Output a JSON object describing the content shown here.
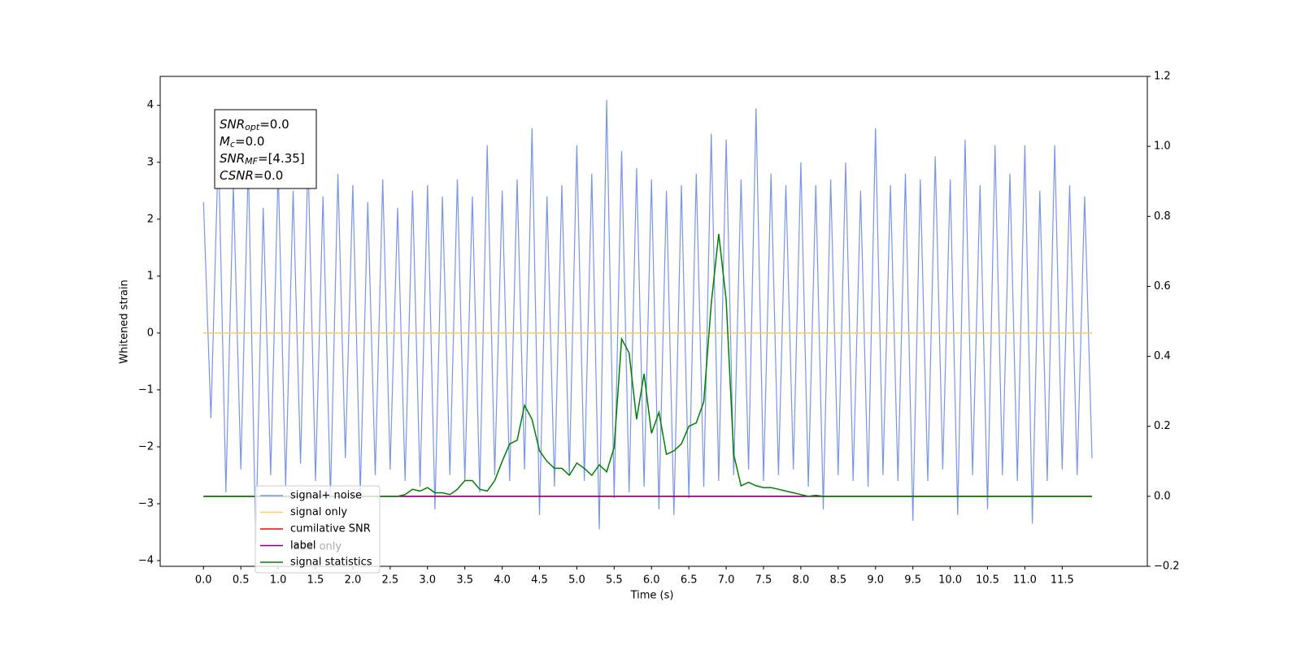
{
  "chart_data": {
    "type": "line",
    "xlabel": "Time (s)",
    "ylabel": "Whitened strain",
    "xlim": [
      -0.58,
      12.64
    ],
    "ylim": [
      -4.1,
      4.51
    ],
    "y2lim": [
      -0.2,
      1.2
    ],
    "xticks": [
      {
        "value": 0,
        "label": "0.0"
      },
      {
        "value": 0.5,
        "label": "0.5"
      },
      {
        "value": 1,
        "label": "1.0"
      },
      {
        "value": 1.5,
        "label": "1.5"
      },
      {
        "value": 2,
        "label": "2.0"
      },
      {
        "value": 2.5,
        "label": "2.5"
      },
      {
        "value": 3,
        "label": "3.0"
      },
      {
        "value": 3.5,
        "label": "3.5"
      },
      {
        "value": 4,
        "label": "4.0"
      },
      {
        "value": 4.5,
        "label": "4.5"
      },
      {
        "value": 5,
        "label": "5.0"
      },
      {
        "value": 5.5,
        "label": "5.5"
      },
      {
        "value": 6,
        "label": "6.0"
      },
      {
        "value": 6.5,
        "label": "6.5"
      },
      {
        "value": 7,
        "label": "7.0"
      },
      {
        "value": 7.5,
        "label": "7.5"
      },
      {
        "value": 8,
        "label": "8.0"
      },
      {
        "value": 8.5,
        "label": "8.5"
      },
      {
        "value": 9,
        "label": "9.0"
      },
      {
        "value": 9.5,
        "label": "9.5"
      },
      {
        "value": 10,
        "label": "10.0"
      },
      {
        "value": 10.5,
        "label": "10.5"
      },
      {
        "value": 11,
        "label": "11.0"
      },
      {
        "value": 11.5,
        "label": "11.5"
      }
    ],
    "yticks": [
      {
        "value": -4,
        "label": "−4"
      },
      {
        "value": -3,
        "label": "−3"
      },
      {
        "value": -2,
        "label": "−2"
      },
      {
        "value": -1,
        "label": "−1"
      },
      0,
      1,
      2,
      3,
      4
    ],
    "y2ticks": [
      {
        "value": -0.2,
        "label": "−0.2"
      },
      {
        "value": 0,
        "label": "0.0"
      },
      {
        "value": 0.2,
        "label": "0.2"
      },
      {
        "value": 0.4,
        "label": "0.4"
      },
      {
        "value": 0.6,
        "label": "0.6"
      },
      {
        "value": 0.8,
        "label": "0.8"
      },
      {
        "value": 1,
        "label": "1.0"
      },
      {
        "value": 1.2,
        "label": "1.2"
      }
    ],
    "x": [
      0,
      0.1,
      0.2,
      0.3,
      0.4,
      0.5,
      0.6,
      0.7,
      0.8,
      0.9,
      1,
      1.1,
      1.2,
      1.3,
      1.4,
      1.5,
      1.6,
      1.7,
      1.8,
      1.9,
      2,
      2.1,
      2.2,
      2.3,
      2.4,
      2.5,
      2.6,
      2.7,
      2.8,
      2.9,
      3,
      3.1,
      3.2,
      3.3,
      3.4,
      3.5,
      3.6,
      3.7,
      3.8,
      3.9,
      4,
      4.1,
      4.2,
      4.3,
      4.4,
      4.5,
      4.6,
      4.7,
      4.8,
      4.9,
      5,
      5.1,
      5.2,
      5.3,
      5.4,
      5.5,
      5.6,
      5.7,
      5.8,
      5.9,
      6,
      6.1,
      6.2,
      6.3,
      6.4,
      6.5,
      6.6,
      6.7,
      6.8,
      6.9,
      7,
      7.1,
      7.2,
      7.3,
      7.4,
      7.5,
      7.6,
      7.7,
      7.8,
      7.9,
      8,
      8.1,
      8.2,
      8.3,
      8.4,
      8.5,
      8.6,
      8.7,
      8.8,
      8.9,
      9,
      9.1,
      9.2,
      9.3,
      9.4,
      9.5,
      9.6,
      9.7,
      9.8,
      9.9,
      10,
      10.1,
      10.2,
      10.3,
      10.4,
      10.5,
      10.6,
      10.7,
      10.8,
      10.9,
      11,
      11.1,
      11.2,
      11.3,
      11.4,
      11.5,
      11.6,
      11.7,
      11.8,
      11.9
    ],
    "series": [
      {
        "name": "signal+ noise",
        "color": "#7896e6",
        "values": [
          2.3,
          -1.5,
          3.3,
          -2.8,
          2.6,
          -2.4,
          3.0,
          -3.7,
          2.2,
          -2.5,
          2.9,
          -2.7,
          2.5,
          -2.3,
          3.1,
          -2.6,
          2.4,
          -2.9,
          2.8,
          -2.2,
          2.6,
          -2.8,
          2.3,
          -2.5,
          2.7,
          -2.4,
          2.2,
          -2.6,
          2.5,
          -2.7,
          2.6,
          -3.1,
          2.4,
          -2.5,
          2.7,
          -2.6,
          2.4,
          -2.8,
          3.3,
          -2.5,
          2.5,
          -2.6,
          2.7,
          -2.4,
          3.6,
          -3.2,
          2.4,
          -2.7,
          2.6,
          -2.5,
          3.3,
          -2.6,
          2.8,
          -3.45,
          4.1,
          -2.9,
          3.2,
          -2.8,
          2.9,
          -2.7,
          2.7,
          -3.1,
          2.5,
          -3.2,
          2.6,
          -2.9,
          2.8,
          -2.7,
          3.5,
          -2.6,
          3.4,
          -2.5,
          2.7,
          -2.4,
          3.95,
          -2.6,
          2.8,
          -2.5,
          2.6,
          -2.4,
          3.0,
          -2.7,
          2.6,
          -3.1,
          2.7,
          -2.5,
          3.0,
          -2.6,
          2.5,
          -2.7,
          3.6,
          -2.5,
          2.6,
          -2.6,
          2.8,
          -3.3,
          2.7,
          -2.6,
          3.1,
          -2.4,
          2.7,
          -3.2,
          3.4,
          -2.5,
          2.6,
          -3.1,
          3.3,
          -2.5,
          2.8,
          -2.6,
          3.3,
          -3.35,
          2.5,
          -2.6,
          3.3,
          -2.4,
          2.6,
          -2.5,
          2.4,
          -2.2
        ]
      },
      {
        "name": "signal only",
        "color": "#ffc966",
        "values": [
          0,
          0,
          0,
          0,
          0,
          0,
          0,
          0,
          0,
          0,
          0,
          0,
          0,
          0,
          0,
          0,
          0,
          0,
          0,
          0,
          0,
          0,
          0,
          0,
          0,
          0,
          0,
          0,
          0,
          0,
          0,
          0,
          0,
          0,
          0,
          0,
          0,
          0,
          0,
          0,
          0,
          0,
          0,
          0,
          0,
          0,
          0,
          0,
          0,
          0,
          0,
          0,
          0,
          0,
          0,
          0,
          0,
          0,
          0,
          0,
          0,
          0,
          0,
          0,
          0,
          0,
          0,
          0,
          0,
          0,
          0,
          0,
          0,
          0,
          0,
          0,
          0,
          0,
          0,
          0,
          0,
          0,
          0,
          0,
          0,
          0,
          0,
          0,
          0,
          0,
          0,
          0,
          0,
          0,
          0,
          0,
          0,
          0,
          0,
          0,
          0,
          0,
          0,
          0,
          0,
          0,
          0,
          0,
          0,
          0,
          0,
          0,
          0,
          0,
          0,
          0,
          0,
          0,
          0,
          0
        ]
      },
      {
        "name": "cumilative SNR",
        "color": "#ff0000",
        "axis": "y2",
        "values": [
          0,
          0,
          0,
          0,
          0,
          0,
          0,
          0,
          0,
          0,
          0,
          0,
          0,
          0,
          0,
          0,
          0,
          0,
          0,
          0,
          0,
          0,
          0,
          0,
          0,
          0,
          0,
          0,
          0,
          0,
          0,
          0,
          0,
          0,
          0,
          0,
          0,
          0,
          0,
          0,
          0,
          0,
          0,
          0,
          0,
          0,
          0,
          0,
          0,
          0,
          0,
          0,
          0,
          0,
          0,
          0,
          0,
          0,
          0,
          0,
          0,
          0,
          0,
          0,
          0,
          0,
          0,
          0,
          0,
          0,
          0,
          0,
          0,
          0,
          0,
          0,
          0,
          0,
          0,
          0,
          0,
          0,
          0,
          0,
          0,
          0,
          0,
          0,
          0,
          0,
          0,
          0,
          0,
          0,
          0,
          0,
          0,
          0,
          0,
          0,
          0,
          0,
          0,
          0,
          0,
          0,
          0,
          0,
          0,
          0,
          0,
          0,
          0,
          0,
          0,
          0,
          0,
          0,
          0,
          0
        ]
      },
      {
        "name": "label",
        "color": "#800080",
        "axis": "y2",
        "values": [
          0,
          0,
          0,
          0,
          0,
          0,
          0,
          0,
          0,
          0,
          0,
          0,
          0,
          0,
          0,
          0,
          0,
          0,
          0,
          0,
          0,
          0,
          0,
          0,
          0,
          0,
          0,
          0,
          0,
          0,
          0,
          0,
          0,
          0,
          0,
          0,
          0,
          0,
          0,
          0,
          0,
          0,
          0,
          0,
          0,
          0,
          0,
          0,
          0,
          0,
          0,
          0,
          0,
          0,
          0,
          0,
          0,
          0,
          0,
          0,
          0,
          0,
          0,
          0,
          0,
          0,
          0,
          0,
          0,
          0,
          0,
          0,
          0,
          0,
          0,
          0,
          0,
          0,
          0,
          0,
          0,
          0,
          0,
          0,
          0,
          0,
          0,
          0,
          0,
          0,
          0,
          0,
          0,
          0,
          0,
          0,
          0,
          0,
          0,
          0,
          0,
          0,
          0,
          0,
          0,
          0,
          0,
          0,
          0,
          0,
          0,
          0,
          0,
          0,
          0,
          0,
          0,
          0,
          0,
          0
        ]
      },
      {
        "name": "signal statistics",
        "color": "#008000",
        "axis": "y2",
        "values": [
          0,
          0,
          0,
          0,
          0,
          0,
          0,
          0,
          0,
          0,
          0,
          0,
          0,
          0,
          0,
          0,
          0,
          0,
          0,
          0,
          0,
          0,
          0,
          0,
          0,
          0,
          0,
          0.005,
          0.02,
          0.015,
          0.025,
          0.01,
          0.01,
          0.005,
          0.02,
          0.045,
          0.045,
          0.02,
          0.015,
          0.045,
          0.1,
          0.15,
          0.16,
          0.26,
          0.22,
          0.13,
          0.1,
          0.08,
          0.08,
          0.06,
          0.095,
          0.08,
          0.06,
          0.09,
          0.07,
          0.14,
          0.45,
          0.41,
          0.22,
          0.35,
          0.18,
          0.24,
          0.12,
          0.13,
          0.15,
          0.2,
          0.21,
          0.27,
          0.55,
          0.75,
          0.56,
          0.12,
          0.03,
          0.04,
          0.03,
          0.025,
          0.025,
          0.02,
          0.015,
          0.01,
          0.005,
          0,
          0.003,
          0,
          0,
          0,
          0,
          0,
          0,
          0,
          0,
          0,
          0,
          0,
          0,
          0,
          0,
          0,
          0,
          0,
          0,
          0,
          0,
          0,
          0,
          0,
          0,
          0,
          0,
          0,
          0,
          0,
          0,
          0,
          0,
          0,
          0,
          0,
          0,
          0
        ]
      }
    ],
    "legend_overlay_text": "label only",
    "annotations": [
      {
        "name": "SNR",
        "sub": "opt",
        "value": "=0.0"
      },
      {
        "name": "M",
        "sub": "c",
        "value": "=0.0"
      },
      {
        "name": "SNR",
        "sub": "MF",
        "value": "=[4.35]"
      },
      {
        "name": "CSNR",
        "sub": "",
        "value": "=0.0"
      }
    ]
  }
}
